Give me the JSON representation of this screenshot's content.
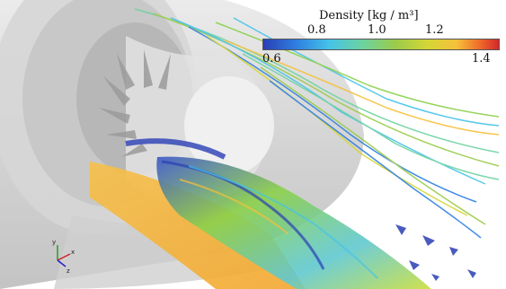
{
  "legend": {
    "title": "Density [kg / m³]",
    "ticks_top": [
      "0.8",
      "1.0",
      "1.2"
    ],
    "ticks_bottom": [
      "0.6",
      "1.4"
    ],
    "range": [
      0.6,
      1.4
    ],
    "colors": [
      "#2a3fb5",
      "#2f7fe0",
      "#45c3e8",
      "#6cd2a0",
      "#9acb4a",
      "#d5d635",
      "#f5c13a",
      "#ef6a2a",
      "#d4282b"
    ]
  },
  "axes": {
    "y": "y",
    "x": "x",
    "z": "z"
  }
}
